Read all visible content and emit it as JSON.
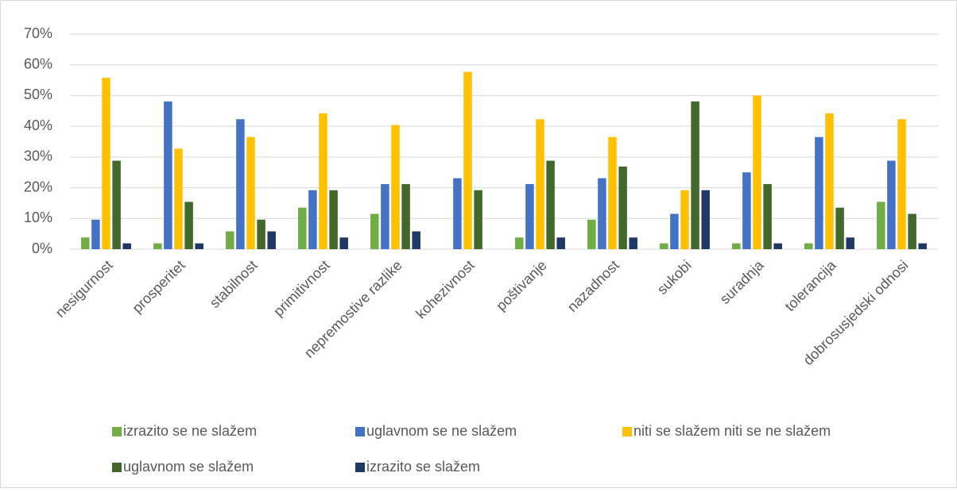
{
  "chart_data": {
    "type": "bar",
    "categories": [
      "nesigurnost",
      "prosperitet",
      "stabilnost",
      "primitivnost",
      "nepremostive razlike",
      "kohezivnost",
      "poštivanje",
      "nazadnost",
      "sukobi",
      "suradnja",
      "tolerancija",
      "dobrosusjedski odnosi"
    ],
    "series": [
      {
        "name": "izrazito se ne slažem",
        "color": "#70ad47",
        "values": [
          3.8,
          1.9,
          5.8,
          13.5,
          11.5,
          0,
          3.8,
          9.6,
          1.9,
          1.9,
          1.9,
          15.4
        ]
      },
      {
        "name": "uglavnom se ne slažem",
        "color": "#4472c4",
        "values": [
          9.6,
          48.1,
          42.3,
          19.2,
          21.2,
          23.1,
          21.2,
          23.1,
          11.5,
          25.0,
          36.5,
          28.8
        ]
      },
      {
        "name": "niti se slažem niti se ne slažem",
        "color": "#ffc000",
        "values": [
          55.8,
          32.7,
          36.5,
          44.2,
          40.4,
          57.7,
          42.3,
          36.5,
          19.2,
          50.0,
          44.2,
          42.3
        ]
      },
      {
        "name": "uglavnom se slažem",
        "color": "#43682b",
        "values": [
          28.8,
          15.4,
          9.6,
          19.2,
          21.2,
          19.2,
          28.8,
          26.9,
          48.1,
          21.2,
          13.5,
          11.5
        ]
      },
      {
        "name": "izrazito se slažem",
        "color": "#203864",
        "values": [
          1.9,
          1.9,
          5.8,
          3.8,
          5.8,
          0,
          3.8,
          3.8,
          19.2,
          1.9,
          3.8,
          1.9
        ]
      }
    ],
    "ylim": [
      0,
      70
    ],
    "yticks": [
      {
        "value": 0,
        "label": "0%"
      },
      {
        "value": 10,
        "label": "10%"
      },
      {
        "value": 20,
        "label": "20%"
      },
      {
        "value": 30,
        "label": "30%"
      },
      {
        "value": 40,
        "label": "40%"
      },
      {
        "value": 50,
        "label": "50%"
      },
      {
        "value": 60,
        "label": "60%"
      },
      {
        "value": 70,
        "label": "70%"
      }
    ],
    "grid": true,
    "legend": "bottom"
  }
}
